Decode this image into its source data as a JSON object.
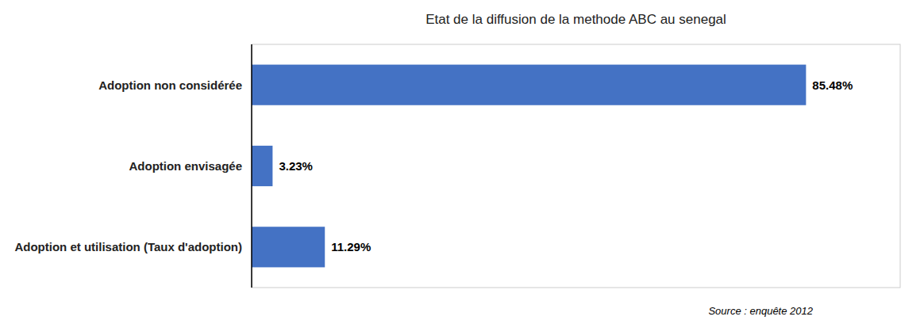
{
  "chart_data": {
    "type": "bar",
    "orientation": "horizontal",
    "title": "Etat de la diffusion de la methode ABC au senegal",
    "categories": [
      "Adoption et utilisation (Taux d'adoption)",
      "Adoption envisagée",
      "Adoption non considérée"
    ],
    "values": [
      11.29,
      3.23,
      85.48
    ],
    "value_labels": [
      "11.29%",
      "3.23%",
      "85.48%"
    ],
    "data_labels": true,
    "color": "#4472C4",
    "xlim": [
      0,
      100
    ],
    "xticks": [],
    "tick_labels": "y",
    "grid": false,
    "annotations": [
      "Source : enquête 2012"
    ]
  }
}
